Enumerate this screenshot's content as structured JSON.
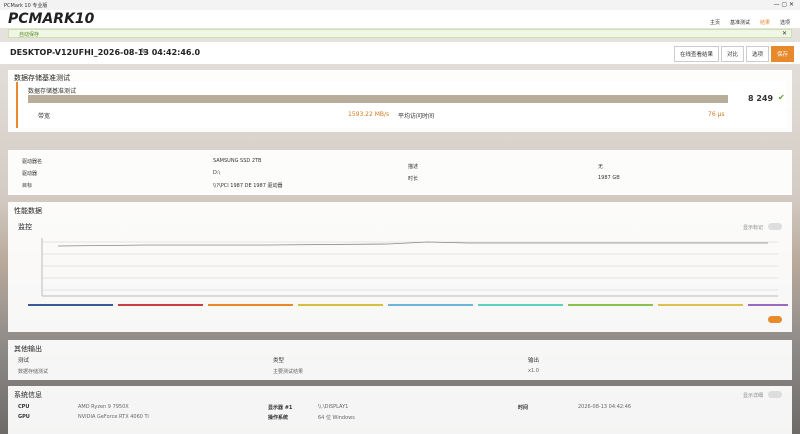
{
  "window_title": "PCMark 10 专业版",
  "header": {
    "logo": "PCMARK10",
    "nav": [
      "主页",
      "基准测试",
      "结果",
      "选项"
    ]
  },
  "notice": "自动保存",
  "result": {
    "name": "DESKTOP-V12UFHI_2026-08-13 04:42:46.0",
    "buttons": [
      "在线查看结果",
      "对比",
      "选项",
      "保存"
    ]
  },
  "test": {
    "title": "数据存储基准测试",
    "name": "数据存储基准测试",
    "score": "8 249",
    "metrics": [
      {
        "label": "带宽",
        "value": "1593.22 MB/s"
      },
      {
        "label": "平均访问时间",
        "value": "76 μs"
      }
    ]
  },
  "info": {
    "left": [
      [
        "驱动器名",
        "SAMSUNG SSD 2TB"
      ],
      [
        "驱动器",
        "D:\\"
      ],
      [
        "目标",
        "\\\\?\\PCI 1987 DE 1987 驱动器"
      ]
    ],
    "right": [
      [
        "描述",
        "无"
      ],
      [
        "时长",
        "1987 GB"
      ]
    ]
  },
  "performance": {
    "title": "性能数据",
    "monitor": "监控",
    "toggle": "显示标记"
  },
  "other_output": {
    "title": "其他输出",
    "headers": [
      "测试",
      "类型",
      "输出"
    ],
    "rows": [
      [
        "数据存储测试",
        "主要测试结果",
        "x1.0"
      ]
    ]
  },
  "system": {
    "title": "系统信息",
    "toggle": "显示详细",
    "rows": [
      [
        "CPU",
        "AMD Ryzen 9 7950X",
        "显示器 #1",
        "\\\\.\\DISPLAY1",
        "时间",
        "2026-08-13 04:42:46"
      ],
      [
        "GPU",
        "NVIDIA GeForce RTX 4060 Ti",
        "操作系统",
        "64 位 Windows"
      ]
    ]
  }
}
